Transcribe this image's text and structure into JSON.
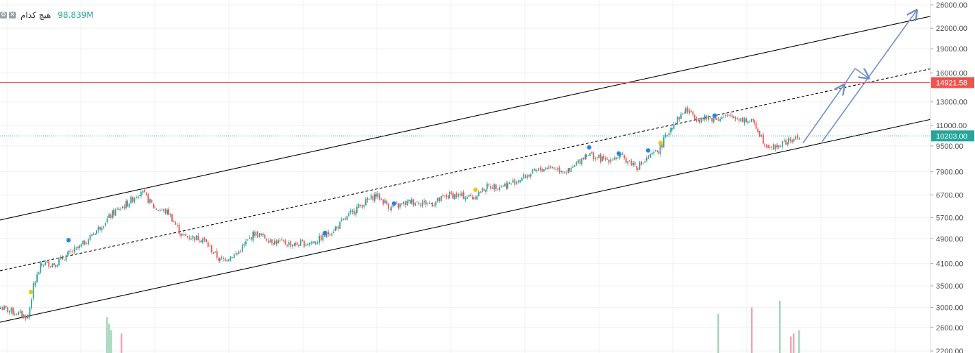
{
  "legend": {
    "volume_label": "هیچ کدام",
    "volume_value": "98.839M"
  },
  "price_axis": {
    "ticks": [
      "26000.00",
      "22000.00",
      "19000.00",
      "16000.00",
      "13000.00",
      "11000.00",
      "9500.00",
      "7900.00",
      "6700.00",
      "5700.00",
      "4900.00",
      "4100.00",
      "3500.00",
      "3000.00",
      "2600.00",
      "2200.00"
    ]
  },
  "markers": {
    "resistance_line": {
      "label": "14921.58",
      "color": "#ef5350"
    },
    "last_price": {
      "label": "10203.00",
      "color": "#26a69a"
    }
  },
  "colors": {
    "up": "#26a69a",
    "down": "#ef5350",
    "channel": "#000000",
    "arrows": "#6f8fc9",
    "grid": "#eef0f3"
  },
  "chart_data": {
    "type": "candlestick",
    "scale": "log",
    "ylim": [
      2200,
      26000
    ],
    "grid": true,
    "series_points": [
      [
        0,
        3000
      ],
      [
        40,
        2800
      ],
      [
        48,
        3500
      ],
      [
        60,
        4100
      ],
      [
        80,
        4100
      ],
      [
        100,
        4400
      ],
      [
        115,
        4600
      ],
      [
        140,
        5200
      ],
      [
        165,
        5900
      ],
      [
        185,
        6300
      ],
      [
        205,
        6900
      ],
      [
        225,
        6100
      ],
      [
        245,
        5900
      ],
      [
        265,
        5000
      ],
      [
        295,
        4900
      ],
      [
        320,
        4200
      ],
      [
        345,
        4400
      ],
      [
        370,
        5100
      ],
      [
        400,
        4800
      ],
      [
        430,
        4700
      ],
      [
        460,
        4800
      ],
      [
        490,
        5300
      ],
      [
        520,
        6100
      ],
      [
        548,
        6700
      ],
      [
        570,
        6100
      ],
      [
        600,
        6400
      ],
      [
        630,
        6300
      ],
      [
        655,
        6700
      ],
      [
        690,
        6600
      ],
      [
        710,
        7100
      ],
      [
        740,
        7200
      ],
      [
        780,
        7900
      ],
      [
        800,
        8200
      ],
      [
        830,
        7900
      ],
      [
        855,
        9000
      ],
      [
        880,
        8600
      ],
      [
        905,
        8800
      ],
      [
        930,
        8200
      ],
      [
        960,
        9200
      ],
      [
        980,
        11000
      ],
      [
        1000,
        12300
      ],
      [
        1020,
        11500
      ],
      [
        1045,
        11600
      ],
      [
        1070,
        11700
      ],
      [
        1100,
        11200
      ],
      [
        1115,
        9700
      ],
      [
        1128,
        9400
      ],
      [
        1150,
        9800
      ],
      [
        1168,
        10200
      ]
    ],
    "volume_bars": [
      {
        "x": 155,
        "value_fraction": 0.55,
        "up": true
      },
      {
        "x": 158,
        "value_fraction": 0.45,
        "up": true
      },
      {
        "x": 161,
        "value_fraction": 0.35,
        "up": true
      },
      {
        "x": 176,
        "value_fraction": 0.3,
        "up": false
      },
      {
        "x": 1047,
        "value_fraction": 0.6,
        "up": true
      },
      {
        "x": 1096,
        "value_fraction": 0.7,
        "up": false
      },
      {
        "x": 1137,
        "value_fraction": 0.8,
        "up": true
      },
      {
        "x": 1153,
        "value_fraction": 0.25,
        "up": false
      },
      {
        "x": 1157,
        "value_fraction": 0.3,
        "up": false
      },
      {
        "x": 1165,
        "value_fraction": 0.35,
        "up": true
      }
    ],
    "channel_lines": {
      "upper": [
        [
          0,
          5600
        ],
        [
          1360,
          24000
        ]
      ],
      "lower": [
        [
          0,
          2700
        ],
        [
          1360,
          11500
        ]
      ],
      "median": [
        [
          0,
          3900
        ],
        [
          1360,
          16500
        ]
      ]
    },
    "signal_dots": [
      {
        "x": 45,
        "y": 3350,
        "color": "yellow"
      },
      {
        "x": 100,
        "y": 4850,
        "color": "blue"
      },
      {
        "x": 474,
        "y": 5100,
        "color": "blue"
      },
      {
        "x": 575,
        "y": 6300,
        "color": "blue"
      },
      {
        "x": 694,
        "y": 6950,
        "color": "yellow"
      },
      {
        "x": 860,
        "y": 9400,
        "color": "blue"
      },
      {
        "x": 903,
        "y": 9000,
        "color": "blue"
      },
      {
        "x": 946,
        "y": 9200,
        "color": "blue"
      },
      {
        "x": 964,
        "y": 9700,
        "color": "yellow"
      },
      {
        "x": 1043,
        "y": 11800,
        "color": "blue"
      }
    ],
    "projection_arrows": [
      {
        "from": [
          1172,
          9700
        ],
        "to": [
          1232,
          14700
        ]
      },
      {
        "from": [
          1200,
          9800
        ],
        "to": [
          1338,
          25000
        ]
      },
      {
        "from": [
          1232,
          14700
        ],
        "mid": [
          1248,
          16500
        ],
        "to": [
          1268,
          15400
        ]
      }
    ]
  }
}
